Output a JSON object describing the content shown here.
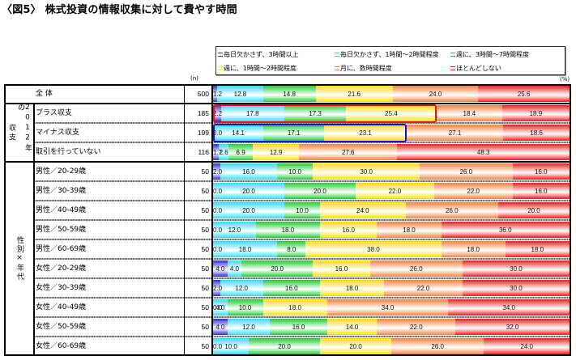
{
  "title": "〈図5〉 株式投資の情報収集に対して費やす時間",
  "table": {
    "n_header": "(n)",
    "pct_header": "(%)",
    "groups": [
      {
        "name": "2012年の収支",
        "label_lines": [
          "2012年の",
          "収支"
        ]
      },
      {
        "name": "性別×年代",
        "label_lines": [
          "性別×年代"
        ]
      }
    ]
  },
  "highlights": [
    {
      "row_label": "プラス収支",
      "color": "#ee1111",
      "width_pct": 62.7
    },
    {
      "row_label": "マイナス収支",
      "color": "#1010dd",
      "width_pct": 54.3
    }
  ],
  "chart_data": {
    "type": "bar",
    "orientation": "horizontal",
    "stacked": true,
    "title": "〈図5〉 株式投資の情報収集に対して費やす時間",
    "xlabel": "(%)",
    "ylabel": "",
    "n_label": "(n)",
    "xlim": [
      0,
      100
    ],
    "grid": false,
    "legend_position": "top-right",
    "categories": [
      "全体",
      "プラス収支",
      "マイナス収支",
      "取引を行っていない",
      "男性／20-29歳",
      "男性／30-39歳",
      "男性／40-49歳",
      "男性／50-59歳",
      "男性／60-69歳",
      "女性／20-29歳",
      "女性／30-39歳",
      "女性／40-49歳",
      "女性／50-59歳",
      "女性／60-69歳"
    ],
    "series": [
      {
        "name": "毎日欠かさず、3時間以上",
        "color": "#2f2fd8",
        "values": [
          1.2,
          2.2,
          0.0,
          1.7,
          2.0,
          0.0,
          0.0,
          0.0,
          0.0,
          4.0,
          2.0,
          0.0,
          4.0,
          0.0
        ]
      },
      {
        "name": "毎日欠かさず、1時間～2時間程度",
        "color": "#33ddff",
        "values": [
          12.8,
          17.8,
          14.1,
          2.6,
          16.0,
          20.0,
          20.0,
          12.0,
          18.0,
          4.0,
          12.0,
          4.0,
          12.0,
          10.0
        ]
      },
      {
        "name": "週に、3時間～7時間程度",
        "color": "#22cc33",
        "values": [
          14.8,
          17.3,
          17.1,
          6.9,
          10.0,
          20.0,
          10.0,
          18.0,
          8.0,
          20.0,
          16.0,
          10.0,
          16.0,
          20.0
        ]
      },
      {
        "name": "週に、1時間～2時間程度",
        "color": "#ffdd11",
        "values": [
          21.6,
          25.4,
          23.1,
          12.9,
          30.0,
          22.0,
          24.0,
          16.0,
          38.0,
          16.0,
          18.0,
          18.0,
          14.0,
          20.0
        ]
      },
      {
        "name": "月に、数時間程度",
        "color": "#f5803e",
        "values": [
          24.0,
          18.4,
          27.1,
          27.6,
          26.0,
          22.0,
          26.0,
          18.0,
          18.0,
          26.0,
          22.0,
          34.0,
          22.0,
          26.0
        ]
      },
      {
        "name": "ほとんどしない",
        "color": "#ee1c1c",
        "values": [
          25.6,
          18.9,
          18.6,
          48.3,
          16.0,
          16.0,
          20.0,
          36.0,
          18.0,
          30.0,
          30.0,
          34.0,
          32.0,
          24.0
        ]
      }
    ],
    "rows": [
      {
        "label": "全 体",
        "n": 500,
        "values": [
          1.2,
          12.8,
          14.8,
          21.6,
          24.0,
          25.6
        ]
      },
      {
        "label": "プラス収支",
        "n": 185,
        "values": [
          2.2,
          17.8,
          17.3,
          25.4,
          18.4,
          18.9
        ]
      },
      {
        "label": "マイナス収支",
        "n": 199,
        "values": [
          0.0,
          14.1,
          17.1,
          23.1,
          27.1,
          18.6
        ]
      },
      {
        "label": "取引を行っていない",
        "n": 116,
        "values": [
          1.7,
          2.6,
          6.9,
          12.9,
          27.6,
          48.3
        ]
      },
      {
        "label": "男性／20-29歳",
        "n": 50,
        "values": [
          2.0,
          16.0,
          10.0,
          30.0,
          26.0,
          16.0
        ]
      },
      {
        "label": "男性／30-39歳",
        "n": 50,
        "values": [
          0.0,
          20.0,
          20.0,
          22.0,
          22.0,
          16.0
        ]
      },
      {
        "label": "男性／40-49歳",
        "n": 50,
        "values": [
          0.0,
          20.0,
          10.0,
          24.0,
          26.0,
          20.0
        ]
      },
      {
        "label": "男性／50-59歳",
        "n": 50,
        "values": [
          0.0,
          12.0,
          18.0,
          16.0,
          18.0,
          36.0
        ]
      },
      {
        "label": "男性／60-69歳",
        "n": 50,
        "values": [
          0.0,
          18.0,
          8.0,
          38.0,
          18.0,
          18.0
        ]
      },
      {
        "label": "女性／20-29歳",
        "n": 50,
        "values": [
          4.0,
          4.0,
          20.0,
          16.0,
          26.0,
          30.0
        ]
      },
      {
        "label": "女性／30-39歳",
        "n": 50,
        "values": [
          2.0,
          12.0,
          16.0,
          18.0,
          22.0,
          30.0
        ]
      },
      {
        "label": "女性／40-49歳",
        "n": 50,
        "values": [
          0.0,
          4.0,
          10.0,
          18.0,
          34.0,
          34.0
        ]
      },
      {
        "label": "女性／50-59歳",
        "n": 50,
        "values": [
          4.0,
          12.0,
          16.0,
          14.0,
          22.0,
          32.0
        ]
      },
      {
        "label": "女性／60-69歳",
        "n": 50,
        "values": [
          0.0,
          10.0,
          20.0,
          20.0,
          26.0,
          24.0
        ]
      }
    ]
  }
}
